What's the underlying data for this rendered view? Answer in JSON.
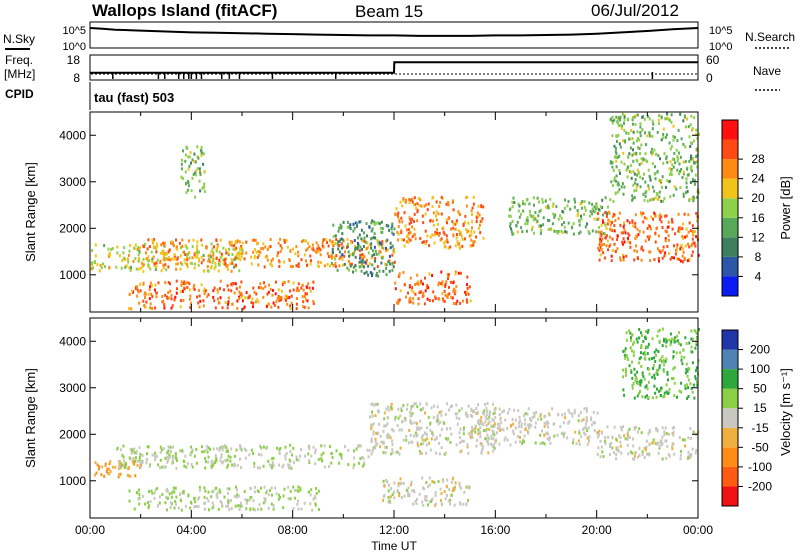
{
  "header": {
    "station": "Wallops Island (fitACF)",
    "beam": "Beam 15",
    "date": "06/Jul/2012"
  },
  "noise_panel": {
    "left_label": "N.Sky",
    "right_label": "N.Search",
    "left_ticks": [
      "10^5",
      "10^0"
    ],
    "right_ticks": [
      "10^5",
      "10^0"
    ]
  },
  "freq_panel": {
    "left_label": "Freq.",
    "left_unit": "[MHz]",
    "right_label": "Nave",
    "left_ticks": [
      "18",
      "8"
    ],
    "right_ticks": [
      "60",
      "0"
    ]
  },
  "cpid": {
    "label": "CPID",
    "value": "tau (fast) 503"
  },
  "x_axis": {
    "label": "Time UT",
    "ticks": [
      "00:00",
      "04:00",
      "08:00",
      "12:00",
      "16:00",
      "20:00",
      "00:00"
    ]
  },
  "y_axis": {
    "label": "Slant Range [km]",
    "ticks": [
      "1000",
      "2000",
      "3000",
      "4000"
    ]
  },
  "power_colorbar": {
    "label": "Power [dB]",
    "ticks": [
      "4",
      "8",
      "12",
      "16",
      "20",
      "24",
      "28"
    ]
  },
  "velocity_colorbar": {
    "label": "Velocity [m s⁻¹]",
    "ticks": [
      "-200",
      "-100",
      "-50",
      "-15",
      "15",
      "50",
      "100",
      "200"
    ]
  },
  "colors": {
    "power": [
      "#0a1cf2",
      "#2d55a8",
      "#3d7f5e",
      "#57a858",
      "#8fd04a",
      "#f0c418",
      "#ff8a14",
      "#ff4a14",
      "#ff0f0f"
    ],
    "velocity": [
      "#ee1212",
      "#ff5a12",
      "#ff8c18",
      "#f0b040",
      "#c8c8c0",
      "#8acf46",
      "#2ea83c",
      "#4f83b3",
      "#2035a8"
    ]
  },
  "chart_data": {
    "type": "heatmap",
    "title": "Wallops Island (fitACF) Beam 15 06/Jul/2012",
    "xlabel": "Time UT",
    "ylabel": "Slant Range [km]",
    "xlim": [
      0,
      24
    ],
    "ylim": [
      200,
      4500
    ],
    "noise_series": {
      "x": [
        0,
        0.5,
        1,
        2,
        3,
        4,
        5,
        6,
        7,
        8,
        9,
        10,
        11,
        12,
        13,
        14,
        15,
        16,
        17,
        18,
        19,
        20,
        21,
        22,
        23,
        24
      ],
      "log10_values": [
        4.1,
        3.9,
        3.7,
        3.5,
        3.3,
        3.1,
        3.0,
        2.9,
        2.8,
        2.7,
        2.6,
        2.5,
        2.4,
        2.4,
        2.3,
        2.3,
        2.3,
        2.4,
        2.4,
        2.5,
        2.6,
        2.8,
        3.1,
        3.4,
        3.8,
        4.1
      ]
    },
    "frequency_series": {
      "x": [
        0,
        12,
        12.01,
        24
      ],
      "mhz": [
        10.5,
        10.5,
        15.5,
        15.5
      ]
    },
    "power_bands": [
      {
        "t_start": 0.0,
        "t_end": 6.0,
        "range_km": [
          1100,
          1700
        ],
        "power_db": 18
      },
      {
        "t_start": 1.5,
        "t_end": 9.0,
        "range_km": [
          300,
          900
        ],
        "power_db": 26
      },
      {
        "t_start": 2.0,
        "t_end": 12.0,
        "range_km": [
          1200,
          1800
        ],
        "power_db": 24
      },
      {
        "t_start": 3.5,
        "t_end": 4.5,
        "range_km": [
          2700,
          3800
        ],
        "power_db": 14
      },
      {
        "t_start": 9.5,
        "t_end": 12.0,
        "range_km": [
          1000,
          2200
        ],
        "power_db": 10
      },
      {
        "t_start": 12.0,
        "t_end": 15.5,
        "range_km": [
          1600,
          2700
        ],
        "power_db": 24
      },
      {
        "t_start": 12.0,
        "t_end": 15.0,
        "range_km": [
          400,
          1100
        ],
        "power_db": 26
      },
      {
        "t_start": 16.5,
        "t_end": 20.5,
        "range_km": [
          1900,
          2700
        ],
        "power_db": 14
      },
      {
        "t_start": 20.0,
        "t_end": 24.0,
        "range_km": [
          1300,
          2400
        ],
        "power_db": 26
      },
      {
        "t_start": 20.5,
        "t_end": 24.0,
        "range_km": [
          2600,
          4500
        ],
        "power_db": 14
      }
    ],
    "velocity_bands": [
      {
        "t_start": 0.0,
        "t_end": 2.0,
        "range_km": [
          1100,
          1500
        ],
        "velocity_ms": -50
      },
      {
        "t_start": 1.0,
        "t_end": 11.0,
        "range_km": [
          1300,
          1800
        ],
        "velocity_ms": 15
      },
      {
        "t_start": 1.5,
        "t_end": 9.0,
        "range_km": [
          400,
          900
        ],
        "velocity_ms": 15
      },
      {
        "t_start": 11.0,
        "t_end": 16.0,
        "range_km": [
          1600,
          2700
        ],
        "velocity_ms": 0
      },
      {
        "t_start": 11.5,
        "t_end": 15.0,
        "range_km": [
          500,
          1100
        ],
        "velocity_ms": 0
      },
      {
        "t_start": 15.0,
        "t_end": 20.0,
        "range_km": [
          1800,
          2600
        ],
        "velocity_ms": 0
      },
      {
        "t_start": 20.0,
        "t_end": 24.0,
        "range_km": [
          1500,
          2200
        ],
        "velocity_ms": 0
      },
      {
        "t_start": 21.0,
        "t_end": 24.0,
        "range_km": [
          2800,
          4300
        ],
        "velocity_ms": 50
      }
    ]
  }
}
